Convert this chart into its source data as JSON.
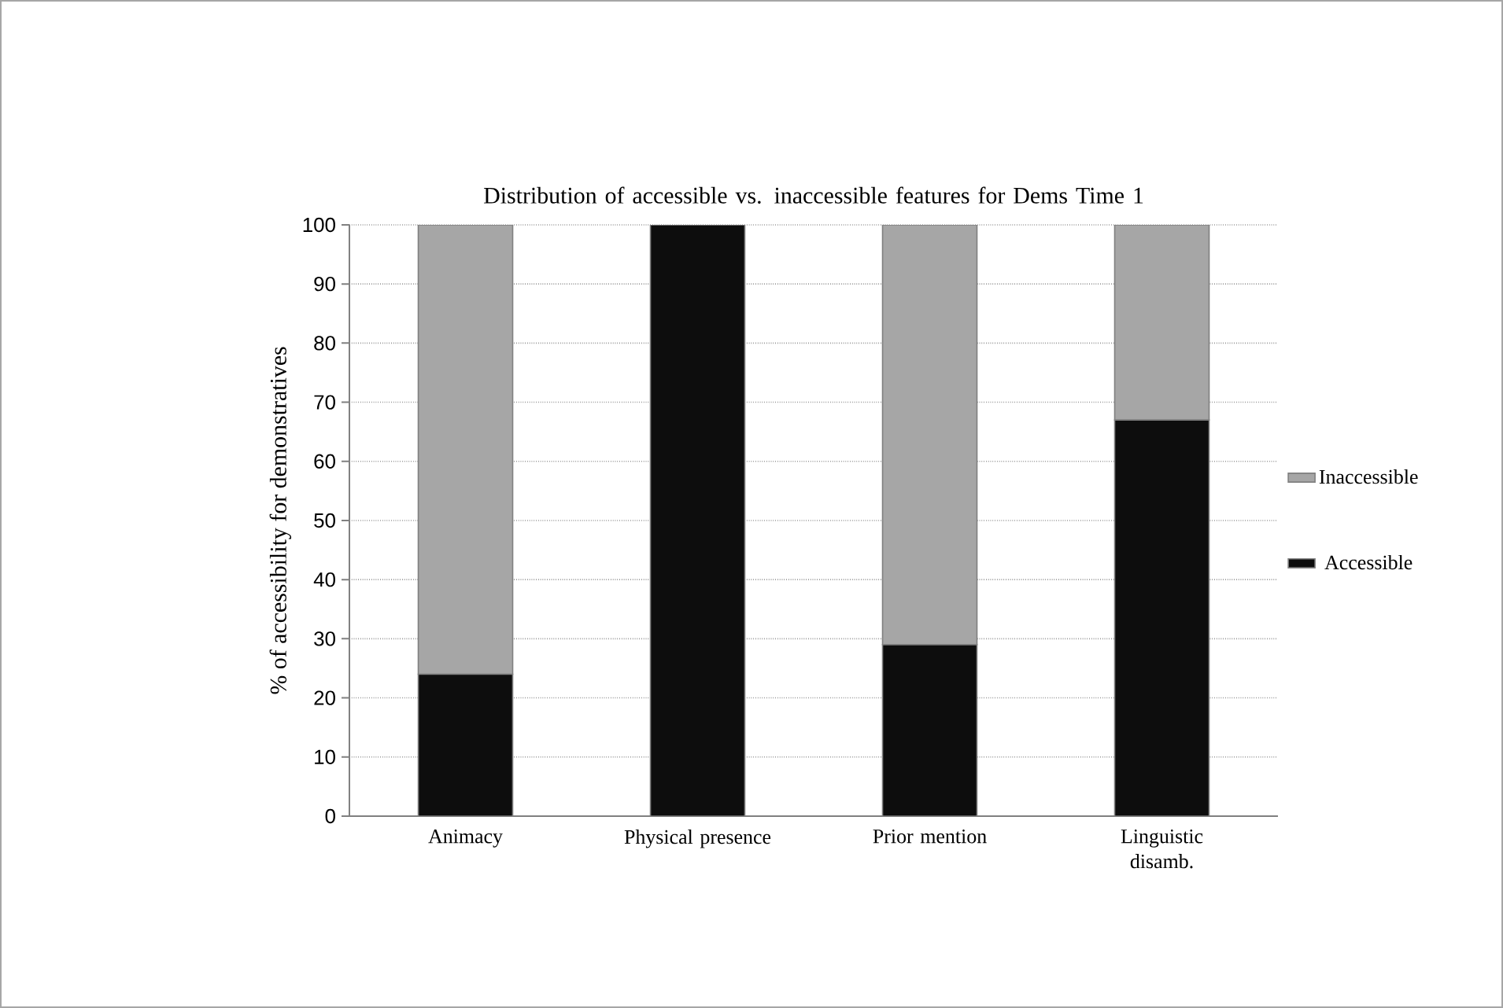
{
  "chart_data": {
    "type": "bar",
    "stacked": true,
    "title": "Distribution of accessible vs. inaccessible features for Dems Time 1",
    "ylabel": "% of accessibility for demonstratives",
    "categories": [
      "Animacy",
      "Physical presence",
      "Prior mention",
      "Linguistic disamb."
    ],
    "series": [
      {
        "name": "Accessible",
        "color": "#0d0d0d",
        "values": [
          24,
          100,
          29,
          67
        ]
      },
      {
        "name": "Inaccessible",
        "color": "#a6a6a6",
        "values": [
          76,
          0,
          71,
          33
        ]
      }
    ],
    "ylim": [
      0,
      100
    ],
    "yticks": [
      0,
      10,
      20,
      30,
      40,
      50,
      60,
      70,
      80,
      90,
      100
    ],
    "grid": "y",
    "legend": "right"
  }
}
